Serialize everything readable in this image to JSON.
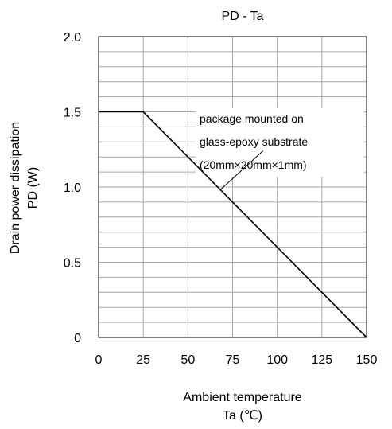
{
  "chart_data": {
    "type": "line",
    "title": "PD - Ta",
    "xlabel": [
      "Ambient temperature",
      "Ta (℃)"
    ],
    "ylabel": [
      "Drain power dissipation",
      "PD (W)"
    ],
    "xlim": [
      0,
      150
    ],
    "ylim": [
      0,
      2.0
    ],
    "xticks": [
      0,
      25,
      50,
      75,
      100,
      125,
      150
    ],
    "xtick_labels": [
      "0",
      "25",
      "50",
      "75",
      "100",
      "125",
      "150"
    ],
    "yticks": [
      0,
      0.5,
      1.0,
      1.5,
      2.0
    ],
    "ytick_labels": [
      "0",
      "0.5",
      "1.0",
      "1.5",
      "2.0"
    ],
    "grid": true,
    "minor_y_step": 0.1,
    "series": [
      {
        "x": [
          0,
          25,
          150
        ],
        "y": [
          1.5,
          1.5,
          0
        ]
      }
    ],
    "annotation": {
      "lines": [
        "package mounted on",
        "glass-epoxy substrate",
        "(20mm×20mm×1mm)"
      ],
      "points_to": [
        68,
        0.98
      ],
      "leader_from": [
        92,
        1.24
      ]
    },
    "colors": {
      "line": "#000000",
      "grid": "#a6a6a6",
      "frame": "#000000"
    }
  }
}
